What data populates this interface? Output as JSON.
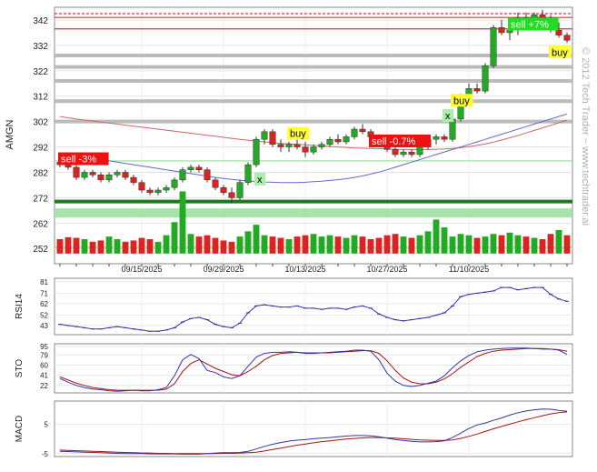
{
  "ticker": "AMGN",
  "watermark": "© 2012 Tech Trader ~ www.techtrader.ai",
  "colors": {
    "up": "#22aa22",
    "down": "#dd2222",
    "blue_line": "#3333aa",
    "red_line": "#aa1111",
    "grid": "#c8c8c8"
  },
  "chart_data": [
    {
      "type": "candlestick",
      "ylabel": "AMGN",
      "ylim": [
        246,
        347
      ],
      "yticks": [
        252,
        262,
        272,
        282,
        292,
        302,
        312,
        322,
        332,
        342
      ],
      "date_labels": [
        "09/15/2025",
        "09/29/2025",
        "10/13/2025",
        "10/27/2025",
        "11/10/2025"
      ],
      "date_label_index": [
        10,
        20,
        30,
        40,
        50
      ],
      "ohlc": [
        [
          286,
          287,
          284,
          285
        ],
        [
          285,
          286,
          283,
          284
        ],
        [
          284,
          285,
          279,
          280
        ],
        [
          280,
          283,
          279,
          282
        ],
        [
          282,
          283,
          280,
          281
        ],
        [
          281,
          282,
          278,
          279
        ],
        [
          279,
          282,
          278,
          281
        ],
        [
          281,
          283,
          280,
          282
        ],
        [
          282,
          283,
          279,
          280
        ],
        [
          280,
          281,
          277,
          278
        ],
        [
          278,
          279,
          274,
          275
        ],
        [
          275,
          276,
          273,
          274
        ],
        [
          274,
          276,
          273,
          275
        ],
        [
          275,
          277,
          274,
          276
        ],
        [
          276,
          280,
          275,
          279
        ],
        [
          279,
          284,
          278,
          283
        ],
        [
          283,
          285,
          282,
          284
        ],
        [
          284,
          285,
          282,
          283
        ],
        [
          283,
          284,
          278,
          279
        ],
        [
          279,
          280,
          275,
          276
        ],
        [
          276,
          277,
          273,
          274
        ],
        [
          274,
          276,
          270,
          272
        ],
        [
          272,
          279,
          271,
          278
        ],
        [
          278,
          286,
          277,
          285
        ],
        [
          285,
          296,
          284,
          295
        ],
        [
          295,
          299,
          293,
          298
        ],
        [
          298,
          299,
          292,
          293
        ],
        [
          293,
          295,
          290,
          292
        ],
        [
          292,
          294,
          290,
          293
        ],
        [
          293,
          295,
          291,
          292
        ],
        [
          292,
          294,
          288,
          290
        ],
        [
          290,
          293,
          289,
          292
        ],
        [
          292,
          294,
          291,
          293
        ],
        [
          293,
          296,
          292,
          295
        ],
        [
          295,
          297,
          293,
          294
        ],
        [
          294,
          297,
          293,
          296
        ],
        [
          296,
          300,
          295,
          299
        ],
        [
          299,
          301,
          297,
          298
        ],
        [
          298,
          299,
          295,
          296
        ],
        [
          296,
          297,
          292,
          293
        ],
        [
          293,
          294,
          290,
          291
        ],
        [
          291,
          292,
          288,
          289
        ],
        [
          289,
          291,
          288,
          290
        ],
        [
          290,
          291,
          288,
          289
        ],
        [
          289,
          293,
          288,
          292
        ],
        [
          292,
          296,
          291,
          295
        ],
        [
          295,
          297,
          293,
          296
        ],
        [
          296,
          297,
          294,
          295
        ],
        [
          295,
          304,
          294,
          303
        ],
        [
          303,
          313,
          302,
          312
        ],
        [
          312,
          317,
          311,
          315
        ],
        [
          315,
          317,
          313,
          314
        ],
        [
          314,
          325,
          313,
          324
        ],
        [
          324,
          340,
          323,
          339
        ],
        [
          339,
          342,
          336,
          337
        ],
        [
          337,
          339,
          334,
          338
        ],
        [
          338,
          345,
          336,
          343
        ],
        [
          343,
          345,
          339,
          340
        ],
        [
          340,
          345,
          338,
          344
        ],
        [
          344,
          346,
          341,
          342
        ],
        [
          342,
          344,
          337,
          338
        ],
        [
          338,
          341,
          335,
          336
        ],
        [
          336,
          337,
          333,
          334
        ]
      ],
      "volume": [
        22,
        25,
        24,
        22,
        18,
        20,
        26,
        22,
        18,
        20,
        24,
        22,
        18,
        28,
        48,
        95,
        30,
        26,
        28,
        24,
        20,
        18,
        26,
        34,
        44,
        28,
        26,
        24,
        22,
        26,
        28,
        30,
        26,
        28,
        26,
        24,
        28,
        26,
        22,
        24,
        28,
        30,
        26,
        24,
        28,
        34,
        52,
        40,
        26,
        30,
        28,
        24,
        26,
        30,
        28,
        32,
        28,
        26,
        24,
        22,
        30,
        36,
        28
      ],
      "volume_color": [
        "down",
        "down",
        "down",
        "up",
        "down",
        "down",
        "up",
        "up",
        "down",
        "down",
        "down",
        "down",
        "up",
        "up",
        "up",
        "up",
        "up",
        "down",
        "down",
        "down",
        "down",
        "down",
        "up",
        "up",
        "up",
        "up",
        "down",
        "down",
        "up",
        "down",
        "down",
        "up",
        "up",
        "up",
        "down",
        "up",
        "up",
        "down",
        "down",
        "down",
        "down",
        "down",
        "up",
        "down",
        "up",
        "up",
        "up",
        "up",
        "up",
        "up",
        "up",
        "down",
        "up",
        "up",
        "down",
        "up",
        "up",
        "down",
        "up",
        "down",
        "down",
        "up",
        "down"
      ],
      "overlays": {
        "sma_long": [
          304.0,
          303.5,
          303.0,
          302.6,
          302.2,
          301.8,
          301.4,
          301.0,
          300.6,
          300.2,
          299.8,
          299.4,
          299.0,
          298.6,
          298.2,
          297.8,
          297.4,
          297.0,
          296.6,
          296.2,
          295.8,
          295.4,
          295.0,
          294.6,
          294.3,
          294.0,
          293.7,
          293.4,
          293.2,
          293.0,
          292.8,
          292.6,
          292.4,
          292.2,
          292.0,
          291.8,
          291.6,
          291.5,
          291.4,
          291.3,
          291.2,
          291.1,
          291.0,
          291.0,
          291.0,
          291.0,
          291.1,
          291.2,
          291.4,
          291.7,
          292.1,
          292.6,
          293.2,
          293.9,
          294.7,
          295.6,
          296.5,
          297.5,
          298.5,
          299.5,
          300.5,
          301.5,
          302.5
        ],
        "sma_mid": [
          289,
          289,
          288.5,
          288,
          287.5,
          287,
          286.5,
          286,
          285.5,
          285,
          284.5,
          284,
          283.5,
          283,
          282.5,
          282,
          281.5,
          281,
          280.5,
          280,
          279.6,
          279.2,
          278.9,
          278.6,
          278.4,
          278.2,
          278.1,
          278.0,
          278.0,
          278.0,
          278.1,
          278.3,
          278.5,
          278.8,
          279.1,
          279.5,
          280.0,
          280.6,
          281.3,
          282.1,
          283.0,
          284.0,
          285.0,
          286.0,
          287.0,
          288.0,
          289.0,
          290.0,
          291.0,
          292.0,
          293.0,
          294.0,
          295.0,
          296.0,
          297.0,
          298.0,
          299.0,
          300.0,
          301.0,
          302.0,
          303.0,
          304.0,
          305.0
        ]
      },
      "horizontal_lines": [
        {
          "price": 344.5,
          "color": "red",
          "style": "dashed"
        },
        {
          "price": 343.0,
          "color": "red",
          "style": "solid"
        },
        {
          "price": 338.5,
          "color": "red",
          "style": "solid"
        },
        {
          "price": 328.0,
          "color": "gray",
          "style": "thick"
        },
        {
          "price": 323.5,
          "color": "gray",
          "style": "thick"
        },
        {
          "price": 318.0,
          "color": "gray",
          "style": "thick"
        },
        {
          "price": 310.0,
          "color": "gray",
          "style": "thick"
        },
        {
          "price": 302.0,
          "color": "gray",
          "style": "thick"
        },
        {
          "price": 286.5,
          "color": "lightgreen",
          "style": "solid"
        },
        {
          "price": 270.5,
          "color": "darkgreen",
          "style": "thick"
        },
        {
          "price": 266.0,
          "color": "lightgreen",
          "style": "band"
        },
        {
          "price": 252.5,
          "color": "lightgreen",
          "style": "solid"
        }
      ],
      "annotations": [
        {
          "label": "sell -3%",
          "index": 0,
          "price": 287,
          "color": "red"
        },
        {
          "label": "x",
          "index": 24,
          "price": 279,
          "color": "lightgreen"
        },
        {
          "label": "buy",
          "index": 28,
          "price": 297,
          "color": "yellow"
        },
        {
          "label": "sell -0.7%",
          "index": 38,
          "price": 294,
          "color": "red"
        },
        {
          "label": "x",
          "index": 47,
          "price": 304,
          "color": "lightgreen"
        },
        {
          "label": "buy",
          "index": 48,
          "price": 310,
          "color": "yellow"
        },
        {
          "label": "sell +7%",
          "index": 55,
          "price": 340,
          "color": "green"
        },
        {
          "label": "buy",
          "index": 60,
          "price": 329,
          "color": "yellow"
        }
      ]
    },
    {
      "type": "line",
      "ylabel": "RSI14",
      "yticks": [
        43,
        52,
        62,
        71,
        81
      ],
      "ylim": [
        35,
        84
      ],
      "values": [
        44,
        43,
        42,
        41,
        40,
        40,
        41,
        42,
        41,
        40,
        39,
        38,
        38,
        39,
        41,
        46,
        49,
        50,
        48,
        44,
        42,
        41,
        45,
        54,
        60,
        61,
        60,
        59,
        59,
        60,
        58,
        58,
        57,
        58,
        58,
        57,
        59,
        60,
        58,
        53,
        50,
        48,
        47,
        48,
        49,
        50,
        52,
        54,
        60,
        68,
        70,
        71,
        72,
        73,
        76,
        76,
        74,
        75,
        76,
        76,
        70,
        66,
        64
      ]
    },
    {
      "type": "line",
      "ylabel": "STO",
      "yticks": [
        22,
        41,
        60,
        79,
        95
      ],
      "ylim": [
        8,
        100
      ],
      "series": [
        {
          "color": "blue",
          "values": [
            35,
            28,
            22,
            18,
            15,
            14,
            12,
            11,
            12,
            13,
            12,
            12,
            14,
            18,
            40,
            70,
            80,
            72,
            50,
            46,
            38,
            35,
            40,
            58,
            75,
            82,
            84,
            84,
            85,
            84,
            82,
            82,
            83,
            84,
            85,
            86,
            88,
            88,
            86,
            70,
            45,
            30,
            22,
            20,
            22,
            26,
            30,
            40,
            55,
            68,
            78,
            85,
            88,
            90,
            91,
            92,
            92,
            92,
            91,
            90,
            90,
            88,
            80
          ]
        },
        {
          "color": "red",
          "values": [
            38,
            32,
            26,
            22,
            18,
            16,
            14,
            13,
            13,
            13,
            13,
            13,
            13,
            15,
            25,
            48,
            63,
            70,
            62,
            54,
            48,
            42,
            40,
            48,
            58,
            70,
            78,
            82,
            83,
            84,
            83,
            83,
            83,
            83,
            84,
            85,
            86,
            87,
            87,
            82,
            68,
            50,
            36,
            28,
            25,
            25,
            28,
            34,
            44,
            56,
            66,
            76,
            82,
            86,
            88,
            89,
            90,
            91,
            91,
            91,
            90,
            89,
            86
          ]
        }
      ]
    },
    {
      "type": "line",
      "ylabel": "MACD",
      "yticks": [
        -5,
        5
      ],
      "ylim": [
        -6,
        13
      ],
      "series": [
        {
          "color": "blue",
          "values": [
            -4.2,
            -4.3,
            -4.4,
            -4.5,
            -4.6,
            -4.7,
            -4.8,
            -4.9,
            -5.0,
            -5.0,
            -5.0,
            -5.1,
            -5.1,
            -5.1,
            -5.1,
            -5.2,
            -5.2,
            -5.2,
            -5.0,
            -4.8,
            -4.7,
            -4.7,
            -4.6,
            -4.2,
            -3.4,
            -2.5,
            -1.8,
            -1.2,
            -0.7,
            -0.4,
            -0.2,
            0.1,
            0.3,
            0.5,
            0.8,
            1.0,
            1.2,
            1.2,
            1.1,
            0.8,
            0.3,
            -0.2,
            -0.5,
            -0.8,
            -1.0,
            -1.0,
            -0.9,
            -0.6,
            0.5,
            2.0,
            3.6,
            4.8,
            5.5,
            6.4,
            7.2,
            8.2,
            9.0,
            9.6,
            10.0,
            10.3,
            10.2,
            9.8,
            9.5
          ]
        },
        {
          "color": "red",
          "values": [
            -3.8,
            -3.9,
            -4.0,
            -4.1,
            -4.2,
            -4.3,
            -4.4,
            -4.5,
            -4.6,
            -4.7,
            -4.8,
            -4.8,
            -4.9,
            -4.9,
            -5.0,
            -5.0,
            -5.0,
            -5.0,
            -5.0,
            -5.0,
            -4.9,
            -4.9,
            -4.8,
            -4.7,
            -4.5,
            -4.1,
            -3.6,
            -3.1,
            -2.6,
            -2.1,
            -1.7,
            -1.3,
            -0.9,
            -0.6,
            -0.3,
            0.0,
            0.2,
            0.4,
            0.5,
            0.5,
            0.4,
            0.3,
            0.1,
            -0.1,
            -0.3,
            -0.4,
            -0.5,
            -0.5,
            -0.3,
            0.2,
            0.9,
            1.7,
            2.6,
            3.5,
            4.3,
            5.1,
            5.9,
            6.6,
            7.3,
            8.0,
            8.6,
            9.0,
            9.3
          ]
        }
      ]
    }
  ]
}
